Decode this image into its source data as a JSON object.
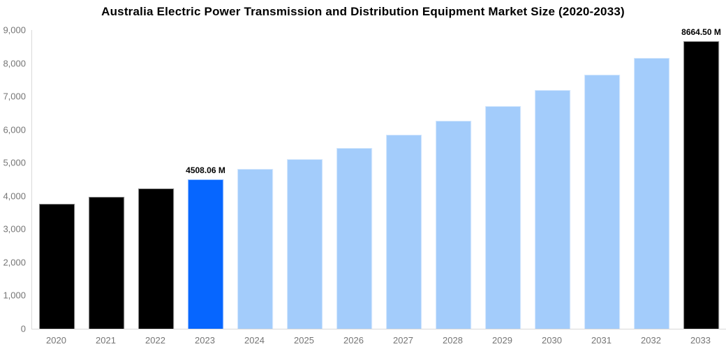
{
  "title": "Australia Electric Power Transmission and Distribution Equipment Market Size (2020-2033)",
  "palette": {
    "historical": "#000000",
    "current": "#0666ff",
    "forecast": "#a3ccfb",
    "endpoint": "#000000",
    "axis_line": "#d9d9d9",
    "tick_label": "#757575",
    "data_label": "#000000",
    "background": "#ffffff"
  },
  "chart_data": {
    "type": "bar",
    "title": "Australia Electric Power Transmission and Distribution Equipment Market Size (2020-2033)",
    "categories": [
      "2020",
      "2021",
      "2022",
      "2023",
      "2024",
      "2025",
      "2026",
      "2027",
      "2028",
      "2029",
      "2030",
      "2031",
      "2032",
      "2033"
    ],
    "values": [
      3755,
      3975,
      4230,
      4508.06,
      4810,
      5100,
      5455,
      5840,
      6260,
      6715,
      7200,
      7660,
      8150,
      8664.5
    ],
    "bar_color_roles": [
      "historical",
      "historical",
      "historical",
      "current",
      "forecast",
      "forecast",
      "forecast",
      "forecast",
      "forecast",
      "forecast",
      "forecast",
      "forecast",
      "forecast",
      "endpoint"
    ],
    "bar_value_labels": [
      "",
      "",
      "",
      "4508.06 M",
      "",
      "",
      "",
      "",
      "",
      "",
      "",
      "",
      "",
      "8664.50 M"
    ],
    "labeled_values": {
      "2023": 4508.06,
      "2033": 8664.5
    },
    "xlabel": "",
    "ylabel": "",
    "ylim": [
      0,
      9000
    ],
    "ytick_interval": 1000,
    "yticks": [
      {
        "label": "0",
        "value": 0
      },
      {
        "label": "1,000",
        "value": 1000
      },
      {
        "label": "2,000",
        "value": 2000
      },
      {
        "label": "3,000",
        "value": 3000
      },
      {
        "label": "4,000",
        "value": 4000
      },
      {
        "label": "5,000",
        "value": 5000
      },
      {
        "label": "6,000",
        "value": 6000
      },
      {
        "label": "7,000",
        "value": 7000
      },
      {
        "label": "8,000",
        "value": 8000
      },
      {
        "label": "9,000",
        "value": 9000
      }
    ],
    "grid": false,
    "legend": "none"
  }
}
